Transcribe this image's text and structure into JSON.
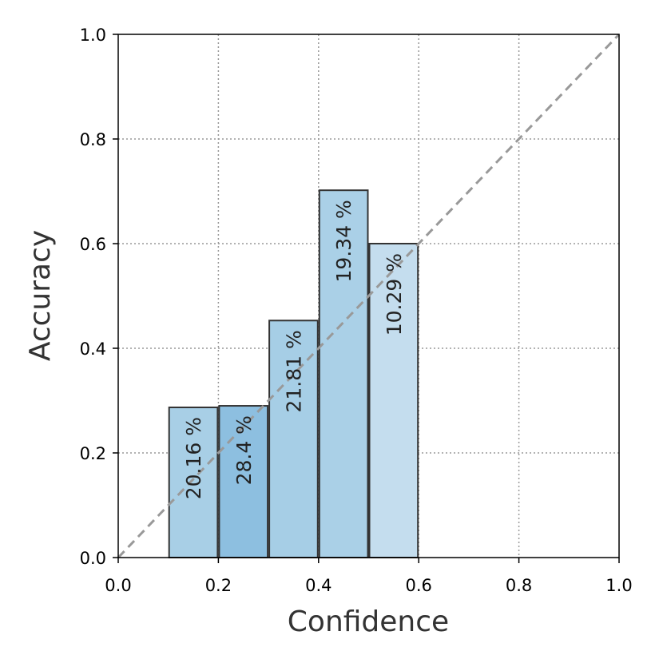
{
  "chart_data": {
    "type": "bar",
    "title": "",
    "xlabel": "Confidence",
    "ylabel": "Accuracy",
    "xlim": [
      0.0,
      1.0
    ],
    "ylim": [
      0.0,
      1.0
    ],
    "grid": true,
    "x_ticks": [
      "0.0",
      "0.2",
      "0.4",
      "0.6",
      "0.8",
      "1.0"
    ],
    "y_ticks": [
      "0.0",
      "0.2",
      "0.4",
      "0.6",
      "0.8",
      "1.0"
    ],
    "bin_width": 0.1,
    "bins": [
      {
        "x_start": 0.1,
        "accuracy": 0.287,
        "label": "20.16 %",
        "color": "#a8cfe6"
      },
      {
        "x_start": 0.2,
        "accuracy": 0.29,
        "label": "28.4 %",
        "color": "#8dbfe0"
      },
      {
        "x_start": 0.3,
        "accuracy": 0.453,
        "label": "21.81 %",
        "color": "#a6cee6"
      },
      {
        "x_start": 0.4,
        "accuracy": 0.702,
        "label": "19.34 %",
        "color": "#aad0e7"
      },
      {
        "x_start": 0.5,
        "accuracy": 0.6,
        "label": "10.29 %",
        "color": "#c4ddee"
      }
    ],
    "diagonal": {
      "from": [
        0.0,
        0.0
      ],
      "to": [
        1.0,
        1.0
      ],
      "style": "dashed",
      "color": "#999999"
    }
  }
}
